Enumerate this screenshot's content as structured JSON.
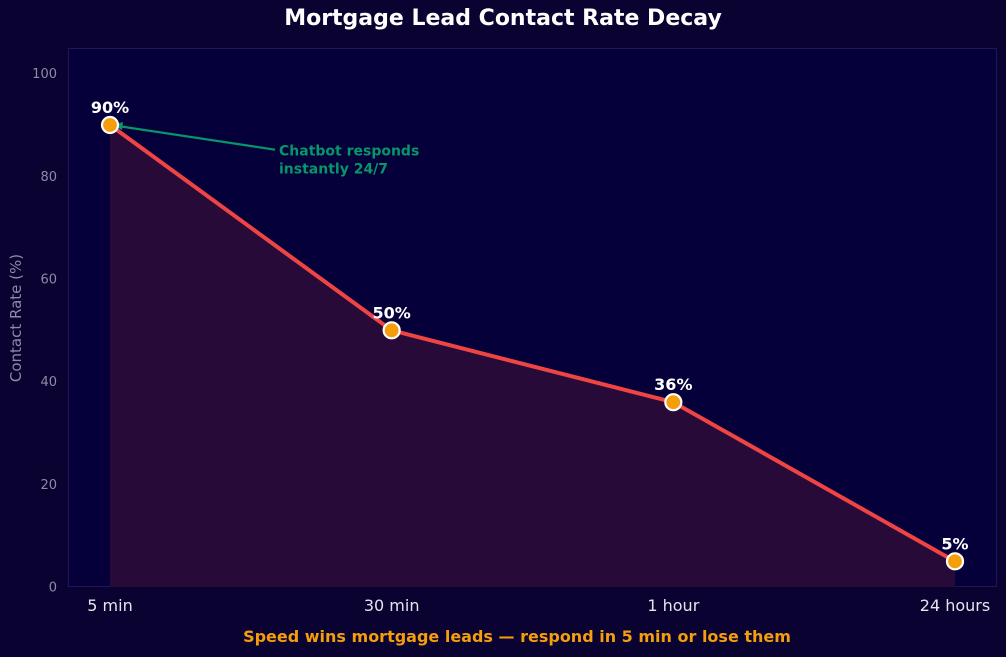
{
  "chart_data": {
    "type": "line",
    "title": "Mortgage Lead Contact Rate Decay",
    "categories": [
      "5 min",
      "30 min",
      "1 hour",
      "24 hours"
    ],
    "values": [
      90,
      50,
      36,
      5
    ],
    "data_labels": [
      "90%",
      "50%",
      "36%",
      "5%"
    ],
    "xlabel": "Speed wins mortgage leads — respond in 5 min or lose them",
    "ylabel": "Contact Rate (%)",
    "ylim": [
      0,
      105
    ],
    "yticks": [
      0,
      20,
      40,
      60,
      80,
      100
    ],
    "grid": false,
    "area_fill": true,
    "annotation": {
      "lines": [
        "Chatbot responds",
        "instantly 24/7"
      ],
      "points_to": {
        "x": "5 min",
        "y": 90
      },
      "text_at": {
        "x_category_index": 0.6,
        "y": 85
      }
    }
  },
  "colors": {
    "background": "#0a0230",
    "plot_background": "#05003a",
    "line": "#ef4444",
    "marker_fill": "#f59e0b",
    "marker_edge": "#ffffff",
    "area_fill": "#2a0b38",
    "annotation": "#059669",
    "xlabel": "#f59e0b",
    "title": "#ffffff",
    "tick_y": "#8e8aa8",
    "tick_x": "#e5e5ee",
    "axis_spine": "#1f1858"
  }
}
